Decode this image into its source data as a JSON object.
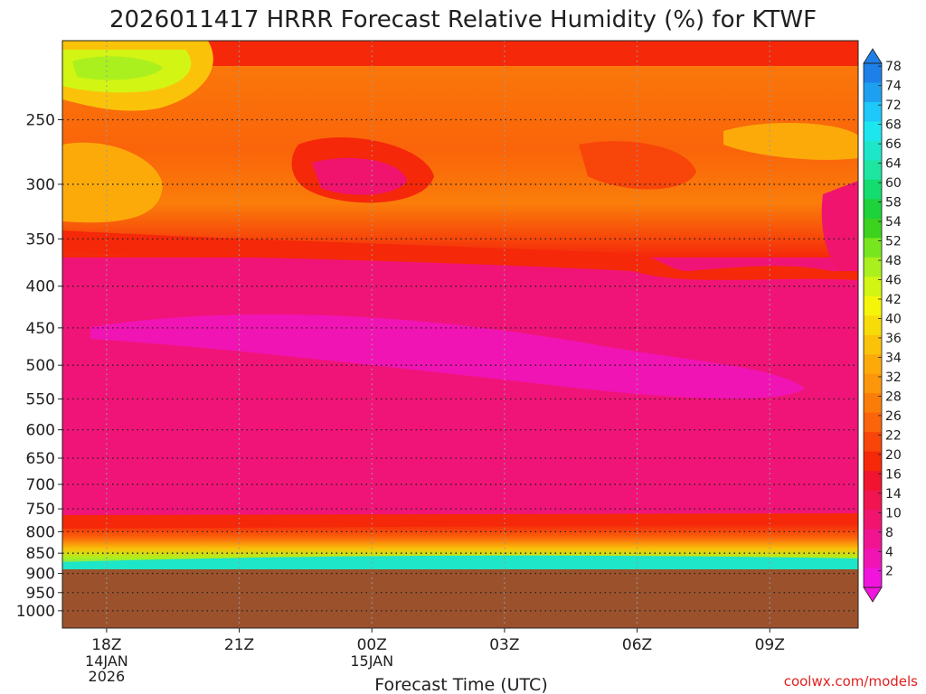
{
  "chart_data": {
    "type": "heatmap",
    "title": "2026011417 HRRR Forecast Relative Humidity (%) for KTWF",
    "xlabel": "Forecast Time (UTC)",
    "ylabel": "",
    "x_ticks": [
      "18Z",
      "21Z",
      "00Z",
      "03Z",
      "06Z",
      "09Z"
    ],
    "x_hours": [
      0,
      3,
      6,
      9,
      12,
      15
    ],
    "x_range_hours": [
      -1,
      17
    ],
    "x_date_labels": [
      {
        "at_hours": 0,
        "lines": [
          "14JAN",
          "2026"
        ]
      },
      {
        "at_hours": 6,
        "lines": [
          "15JAN"
        ]
      }
    ],
    "y_ticks": [
      250,
      300,
      350,
      400,
      450,
      500,
      550,
      600,
      650,
      700,
      750,
      800,
      850,
      900,
      950,
      1000
    ],
    "y_range_hPa": [
      200,
      1050
    ],
    "y_scale": "log",
    "colorbar_labels": [
      78,
      74,
      72,
      68,
      66,
      64,
      60,
      58,
      54,
      52,
      48,
      46,
      42,
      40,
      36,
      34,
      32,
      28,
      26,
      22,
      20,
      16,
      14,
      10,
      8,
      4,
      2
    ],
    "colorbar_colors": [
      "#1e7fe8",
      "#1ea0f0",
      "#1ec8f8",
      "#1ee6ee",
      "#1ee6c8",
      "#1ee6a0",
      "#14dc6e",
      "#1ed23c",
      "#3cd21e",
      "#78e61e",
      "#aaf01e",
      "#d2f514",
      "#f5f50a",
      "#f8dc0a",
      "#fac30a",
      "#fcaa0a",
      "#fc960a",
      "#fa7d0a",
      "#fa640a",
      "#f8460a",
      "#f5280a",
      "#f01430",
      "#f01450",
      "#f0146e",
      "#f01490",
      "#f014b4",
      "#f014dc"
    ],
    "underground_color": "#9b522c",
    "data_color": "#f01478",
    "grid": true,
    "legend": "colorbar right",
    "credit": "coolwx.com/models"
  }
}
